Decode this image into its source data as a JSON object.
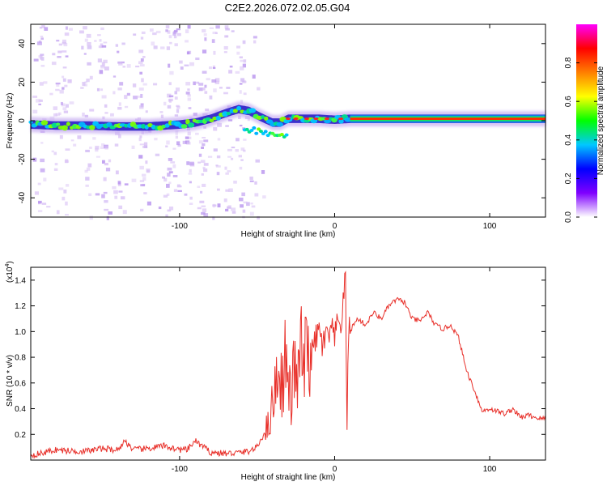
{
  "title": "C2E2.2026.072.02.05.G04",
  "chart_data": [
    {
      "type": "heatmap",
      "title": "C2E2.2026.072.02.05.G04",
      "xlabel": "Height of straight line (km)",
      "ylabel": "Frequency (Hz)",
      "xlim": [
        -196,
        136
      ],
      "ylim": [
        -50,
        50
      ],
      "x_ticks": [
        -100,
        0,
        100
      ],
      "x_tick_labels": [
        "-100",
        "0",
        "100"
      ],
      "y_ticks": [
        -40,
        -20,
        0,
        20,
        40
      ],
      "y_tick_labels": [
        "-40",
        "-20",
        "0",
        "20",
        "40"
      ],
      "ridge": {
        "x": [
          -196,
          -180,
          -160,
          -140,
          -120,
          -100,
          -90,
          -80,
          -70,
          -62,
          -55,
          -48,
          -40,
          -35,
          -30,
          -20,
          -10,
          0,
          10,
          136
        ],
        "freq": [
          -2,
          -2.5,
          -2.5,
          -3,
          -3,
          -2,
          -1,
          1,
          4,
          6,
          5,
          2,
          -1,
          -1,
          1,
          1,
          1,
          0.5,
          1,
          1
        ]
      },
      "colorbar": {
        "label": "Normalized spectral amplitude",
        "range": [
          0,
          1
        ],
        "ticks": [
          0,
          0.2,
          0.4,
          0.6,
          0.8
        ],
        "tick_labels": [
          "0.0",
          "0.2",
          "0.4",
          "0.6",
          "0.8"
        ],
        "colors": [
          "#ffffff",
          "#7f00ff",
          "#0000ff",
          "#00c8ff",
          "#00ff00",
          "#ffff00",
          "#ff7f00",
          "#ff0000",
          "#ff00ff"
        ]
      }
    },
    {
      "type": "line",
      "xlabel": "Height of straight line (km)",
      "ylabel": "SNR (10 * v/v)",
      "scale_note": "(x10",
      "scale_exp": "4",
      "scale_close": ")",
      "xlim": [
        -196,
        136
      ],
      "ylim": [
        0,
        1.5
      ],
      "x_ticks": [
        -100,
        0,
        100
      ],
      "x_tick_labels": [
        "-100",
        "0",
        "100"
      ],
      "y_ticks": [
        0.2,
        0.4,
        0.6,
        0.8,
        1.0,
        1.2,
        1.4
      ],
      "y_tick_labels": [
        "0.2",
        "0.4",
        "0.6",
        "0.8",
        "1.0",
        "1.2",
        "1.4"
      ],
      "color": "#e8302a",
      "series": [
        {
          "name": "SNR",
          "x": [
            -196,
            -190,
            -180,
            -170,
            -160,
            -150,
            -140,
            -135,
            -130,
            -120,
            -110,
            -100,
            -95,
            -90,
            -80,
            -70,
            -60,
            -55,
            -50,
            -45,
            -42,
            -40,
            -38,
            -36,
            -34,
            -32,
            -30,
            -28,
            -26,
            -24,
            -22,
            -20,
            -18,
            -15,
            -12,
            -10,
            -8,
            -5,
            -2,
            0,
            2,
            5,
            7,
            8,
            9,
            10,
            12,
            15,
            20,
            25,
            30,
            35,
            40,
            45,
            50,
            55,
            60,
            65,
            70,
            75,
            80,
            85,
            90,
            93,
            95,
            100,
            105,
            110,
            115,
            120,
            125,
            130,
            136
          ],
          "y": [
            0.04,
            0.05,
            0.08,
            0.07,
            0.07,
            0.09,
            0.08,
            0.15,
            0.08,
            0.09,
            0.11,
            0.08,
            0.08,
            0.15,
            0.06,
            0.05,
            0.06,
            0.07,
            0.1,
            0.22,
            0.3,
            0.45,
            0.6,
            0.75,
            0.55,
            0.8,
            0.6,
            0.45,
            0.75,
            0.55,
            0.9,
            0.7,
            0.85,
            0.8,
            0.95,
            1.0,
            0.9,
            0.95,
            1.0,
            0.95,
            1.05,
            1.1,
            1.45,
            0.3,
            1.0,
            1.0,
            1.05,
            1.1,
            1.05,
            1.15,
            1.1,
            1.2,
            1.25,
            1.23,
            1.1,
            1.08,
            1.15,
            1.05,
            1.02,
            1.05,
            0.95,
            0.7,
            0.55,
            0.45,
            0.38,
            0.4,
            0.38,
            0.36,
            0.4,
            0.33,
            0.35,
            0.33,
            0.32
          ]
        }
      ]
    }
  ]
}
